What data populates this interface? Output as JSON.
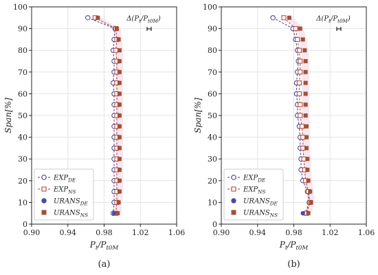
{
  "chart_data": [
    {
      "type": "scatter",
      "panel_label": "(a)",
      "xlabel": "P_t/P_t0M",
      "ylabel": "Span[%]",
      "xlim": [
        0.9,
        1.06
      ],
      "ylim": [
        0,
        100
      ],
      "x_ticks": [
        "0.90",
        "0.94",
        "0.98",
        "1.02",
        "1.06"
      ],
      "y_ticks": [
        "0",
        "10",
        "20",
        "30",
        "40",
        "50",
        "60",
        "70",
        "80",
        "90",
        "100"
      ],
      "grid": true,
      "legend_position": "bottom-left",
      "annotation": "Δ(P_t/P_t0M)",
      "series": [
        {
          "name": "EXP_DE",
          "style": "dashed-line-open-circle",
          "color": "#3a3a9a",
          "x": [
            0.962,
            0.992,
            0.991,
            0.99,
            0.991,
            0.991,
            0.99,
            0.991,
            0.991,
            0.991,
            0.991,
            0.991,
            0.991,
            0.991,
            0.991,
            0.991,
            0.991,
            0.991,
            0.99
          ],
          "y": [
            95,
            90,
            85,
            80,
            75,
            70,
            65,
            60,
            55,
            50,
            45,
            40,
            35,
            30,
            25,
            20,
            15,
            10,
            5
          ]
        },
        {
          "name": "EXP_NS",
          "style": "dashed-line-open-square",
          "color": "#b23a2a",
          "x": [
            0.97,
            0.993,
            0.994,
            0.993,
            0.994,
            0.994,
            0.994,
            0.994,
            0.994,
            0.994,
            0.994,
            0.994,
            0.994,
            0.994,
            0.994,
            0.994,
            0.994,
            0.994,
            0.993
          ],
          "y": [
            95,
            90,
            85,
            80,
            75,
            70,
            65,
            60,
            55,
            50,
            45,
            40,
            35,
            30,
            25,
            20,
            15,
            10,
            5
          ]
        },
        {
          "name": "URANS_DE",
          "style": "filled-circle",
          "color": "#4a4aa8",
          "x": [
            0.991
          ],
          "y": [
            5
          ]
        },
        {
          "name": "URANS_NS",
          "style": "filled-square",
          "color": "#a0503a",
          "x": [
            0.973,
            0.994,
            0.996,
            0.997,
            0.997,
            0.997,
            0.997,
            0.997,
            0.997,
            0.997,
            0.997,
            0.997,
            0.997,
            0.997,
            0.997,
            0.997,
            0.997,
            0.996,
            0.995
          ],
          "y": [
            95,
            90,
            85,
            80,
            75,
            70,
            65,
            60,
            55,
            50,
            45,
            40,
            35,
            30,
            25,
            20,
            15,
            10,
            5
          ]
        }
      ]
    },
    {
      "type": "scatter",
      "panel_label": "(b)",
      "xlabel": "P_t/P_t0M",
      "ylabel": "Span[%]",
      "xlim": [
        0.9,
        1.06
      ],
      "ylim": [
        0,
        100
      ],
      "x_ticks": [
        "0.90",
        "0.94",
        "0.98",
        "1.02",
        "1.06"
      ],
      "y_ticks": [
        "0",
        "10",
        "20",
        "30",
        "40",
        "50",
        "60",
        "70",
        "80",
        "90",
        "100"
      ],
      "grid": true,
      "legend_position": "bottom-left",
      "annotation": "Δ(P_t/P_t0M)",
      "series": [
        {
          "name": "EXP_DE",
          "style": "dashed-line-open-circle",
          "color": "#3a3a9a",
          "x": [
            0.957,
            0.979,
            0.982,
            0.984,
            0.985,
            0.984,
            0.983,
            0.983,
            0.984,
            0.984,
            0.986,
            0.987,
            0.987,
            0.988,
            0.988,
            0.99,
            0.995,
            0.997,
            0.993
          ],
          "y": [
            95,
            90,
            85,
            80,
            75,
            70,
            65,
            60,
            55,
            50,
            45,
            40,
            35,
            30,
            25,
            20,
            15,
            10,
            5
          ]
        },
        {
          "name": "EXP_NS",
          "style": "dashed-line-open-square",
          "color": "#b23a2a",
          "x": [
            0.969,
            0.982,
            0.984,
            0.986,
            0.987,
            0.987,
            0.986,
            0.986,
            0.987,
            0.987,
            0.989,
            0.99,
            0.99,
            0.991,
            0.992,
            0.993,
            0.996,
            0.998,
            0.994
          ],
          "y": [
            95,
            90,
            85,
            80,
            75,
            70,
            65,
            60,
            55,
            50,
            45,
            40,
            35,
            30,
            25,
            20,
            15,
            10,
            5
          ]
        },
        {
          "name": "URANS_DE",
          "style": "filled-circle",
          "color": "#4a4aa8",
          "x": [
            0.99
          ],
          "y": [
            5
          ]
        },
        {
          "name": "URANS_NS",
          "style": "filled-square",
          "color": "#a0503a",
          "x": [
            0.975,
            0.987,
            0.99,
            0.992,
            0.993,
            0.993,
            0.993,
            0.993,
            0.993,
            0.993,
            0.994,
            0.994,
            0.994,
            0.995,
            0.995,
            0.996,
            0.998,
            0.999,
            0.996
          ],
          "y": [
            95,
            90,
            85,
            80,
            75,
            70,
            65,
            60,
            55,
            50,
            45,
            40,
            35,
            30,
            25,
            20,
            15,
            10,
            5
          ]
        }
      ]
    }
  ]
}
